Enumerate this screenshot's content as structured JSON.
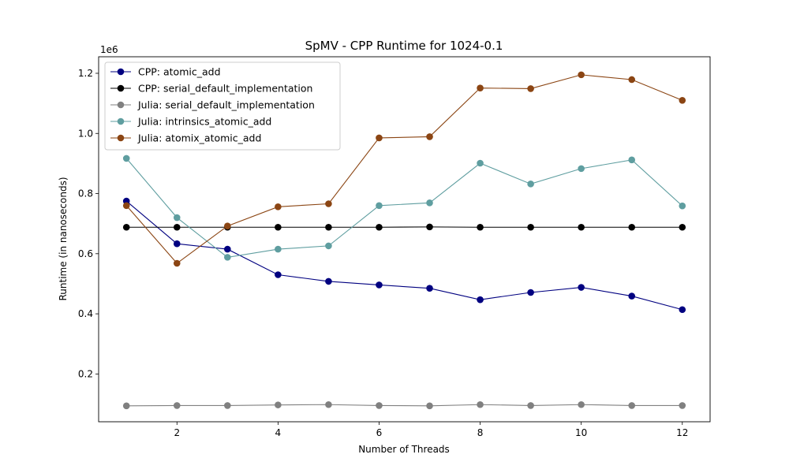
{
  "chart_data": {
    "type": "line",
    "title": "SpMV - CPP Runtime for 1024-0.1",
    "xlabel": "Number of Threads",
    "ylabel": "Runtime (in nanoseconds)",
    "y_offset_label": "1e6",
    "x": [
      1,
      2,
      3,
      4,
      5,
      6,
      7,
      8,
      9,
      10,
      11,
      12
    ],
    "xticks": [
      2,
      4,
      6,
      8,
      10,
      12
    ],
    "xlim": [
      0.45,
      12.55
    ],
    "yticks": [
      0.2,
      0.4,
      0.6,
      0.8,
      1.0,
      1.2
    ],
    "ylim": [
      0.041,
      1.255
    ],
    "y_scale": 1000000,
    "legend_position": "upper-left",
    "grid": false,
    "series": [
      {
        "name": "CPP: atomic_add",
        "color": "#000080",
        "values": [
          775000,
          633000,
          615000,
          530000,
          508000,
          496000,
          485000,
          447000,
          471000,
          488000,
          459000,
          414000
        ]
      },
      {
        "name": "CPP: serial_default_implementation",
        "color": "#000000",
        "values": [
          688000,
          688000,
          688000,
          688000,
          688000,
          688000,
          689000,
          688000,
          688000,
          688000,
          688000,
          688000
        ]
      },
      {
        "name": "Julia: serial_default_implementation",
        "color": "#808080",
        "values": [
          94000,
          95000,
          95000,
          97000,
          98000,
          95000,
          94000,
          98000,
          95000,
          98000,
          95000,
          95000
        ]
      },
      {
        "name": "Julia: intrinsics_atomic_add",
        "color": "#5f9ea0",
        "values": [
          917000,
          720000,
          588000,
          615000,
          626000,
          760000,
          769000,
          901000,
          832000,
          883000,
          912000,
          759000
        ]
      },
      {
        "name": "Julia: atomix_atomic_add",
        "color": "#8b4513",
        "values": [
          760000,
          568000,
          692000,
          756000,
          766000,
          985000,
          989000,
          1151000,
          1149000,
          1195000,
          1179000,
          1110000
        ]
      }
    ]
  }
}
